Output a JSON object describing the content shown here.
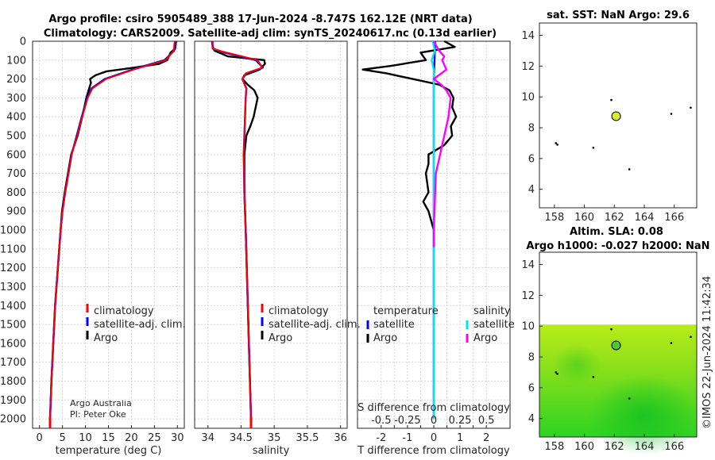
{
  "titles": {
    "line1": "Argo profile: csiro 5905489_388 17-Jun-2024 -8.747S 162.12E (NRT data)",
    "line2": "Climatology: CARS2009. Satellite-adj clim: synTS_20240617.nc (0.13d earlier)",
    "sst": "sat. SST: NaN Argo: 29.6",
    "sla": "Altim. SLA: 0.08",
    "h": "Argo h1000: -0.027 h2000: NaN"
  },
  "credit": {
    "org": "Argo Australia",
    "pi": "PI: Peter Oke"
  },
  "watermark": "©IMOS 22-Jun-2024 11:42:34",
  "colors": {
    "climatology": "#ff0000",
    "satellite": "#0000ff",
    "argo": "#000000",
    "sat_salinity": "#00e5ee",
    "argo_salinity": "#ff00ff"
  },
  "chart_data": [
    {
      "id": "temperature",
      "type": "line",
      "xlabel": "temperature (deg C)",
      "xlim": [
        -1.5,
        31.5
      ],
      "xticks": [
        0,
        5,
        10,
        15,
        20,
        25,
        30
      ],
      "ylim": [
        0,
        2050
      ],
      "yticks": [
        0,
        100,
        200,
        300,
        400,
        500,
        600,
        700,
        800,
        900,
        1000,
        1100,
        1200,
        1300,
        1400,
        1500,
        1600,
        1700,
        1800,
        1900,
        2000
      ],
      "legend": [
        "climatology",
        "satellite-adj. clim.",
        "Argo"
      ],
      "series": [
        {
          "name": "climatology",
          "depth": [
            0,
            50,
            100,
            150,
            200,
            250,
            300,
            400,
            500,
            600,
            700,
            800,
            900,
            1000,
            1200,
            1400,
            1600,
            1800,
            2000
          ],
          "value": [
            29.4,
            29.2,
            27.5,
            20.5,
            14.5,
            11.5,
            10.5,
            9.3,
            8.2,
            7.0,
            6.3,
            5.6,
            5.0,
            4.6,
            4.0,
            3.4,
            3.0,
            2.6,
            2.3
          ]
        },
        {
          "name": "satellite-adj. clim.",
          "depth": [
            0,
            50,
            100,
            150,
            200,
            250,
            300,
            400,
            500,
            600,
            700,
            800,
            900,
            1000,
            1200,
            1400,
            1600,
            1800,
            2000
          ],
          "value": [
            29.5,
            29.3,
            27.2,
            20.2,
            14.2,
            11.3,
            10.4,
            9.2,
            8.1,
            7.0,
            6.3,
            5.6,
            5.0,
            4.6,
            4.0,
            3.4,
            3.0,
            2.6,
            2.3
          ]
        },
        {
          "name": "Argo",
          "depth": [
            0,
            40,
            60,
            100,
            120,
            140,
            160,
            180,
            200,
            220,
            250,
            300,
            400,
            500,
            600,
            700,
            800,
            900,
            1000,
            1200,
            1400,
            1600,
            1800,
            2000
          ],
          "value": [
            29.7,
            29.5,
            28.5,
            27.8,
            26.0,
            20.5,
            14.5,
            12.2,
            11.0,
            11.2,
            10.8,
            10.2,
            9.3,
            8.3,
            6.9,
            6.2,
            5.5,
            4.9,
            4.6,
            4.0,
            3.4,
            3.0,
            2.6,
            2.3
          ]
        }
      ]
    },
    {
      "id": "salinity",
      "type": "line",
      "xlabel": "salinity",
      "xlim": [
        33.8,
        36.1
      ],
      "xticks": [
        34,
        34.5,
        35,
        35.5,
        36
      ],
      "xticklabels": [
        "34",
        "34.5",
        "35",
        "35.5",
        "36"
      ],
      "ylim": [
        0,
        2050
      ],
      "legend": [
        "climatology",
        "satellite-adj. clim.",
        "Argo"
      ],
      "series": [
        {
          "name": "climatology",
          "depth": [
            0,
            40,
            60,
            100,
            140,
            170,
            200,
            250,
            300,
            400,
            500,
            600,
            800,
            1000,
            1500,
            2000
          ],
          "value": [
            34.07,
            34.07,
            34.28,
            34.75,
            34.82,
            34.57,
            34.52,
            34.58,
            34.57,
            34.56,
            34.55,
            34.54,
            34.55,
            34.57,
            34.61,
            34.65
          ]
        },
        {
          "name": "satellite-adj. clim.",
          "depth": [
            0,
            40,
            60,
            100,
            140,
            170,
            200,
            250,
            300,
            400,
            500,
            600,
            800,
            1000,
            1500,
            2000
          ],
          "value": [
            34.06,
            34.08,
            34.25,
            34.72,
            34.83,
            34.58,
            34.52,
            34.58,
            34.57,
            34.56,
            34.55,
            34.54,
            34.55,
            34.57,
            34.61,
            34.65
          ]
        },
        {
          "name": "Argo",
          "depth": [
            0,
            30,
            50,
            80,
            100,
            120,
            150,
            180,
            200,
            230,
            260,
            300,
            350,
            400,
            450,
            500,
            600,
            800,
            1000,
            1500,
            2000
          ],
          "value": [
            34.07,
            34.07,
            34.1,
            34.3,
            34.85,
            34.86,
            34.78,
            34.55,
            34.52,
            34.6,
            34.7,
            34.75,
            34.72,
            34.69,
            34.64,
            34.58,
            34.55,
            34.55,
            34.57,
            34.61,
            34.65
          ]
        }
      ]
    },
    {
      "id": "difference",
      "type": "line",
      "xlabel": "T difference from climatology",
      "xlim": [
        -2.9,
        2.9
      ],
      "xticks": [
        -2,
        -1.5,
        -1,
        -0.5,
        0,
        0.5,
        1,
        1.5,
        2
      ],
      "xticklabels": [
        "-2",
        "",
        "-1",
        "",
        "0",
        "",
        "1",
        "",
        "2"
      ],
      "top_axis_label": "S difference from climatology",
      "top_ticks": [
        "-0.5",
        "-0.25",
        "0",
        "0.25",
        "0.5"
      ],
      "ylim": [
        0,
        2050
      ],
      "legend_groups": [
        {
          "header": "temperature",
          "items": [
            "satellite",
            "Argo"
          ]
        },
        {
          "header": "salinity",
          "items": [
            "satellite",
            "Argo"
          ]
        }
      ],
      "series": [
        {
          "name": "T satellite",
          "depth": [
            0,
            100,
            200,
            300,
            500,
            1000,
            2000
          ],
          "value": [
            0.05,
            0.03,
            0.0,
            0.0,
            0.0,
            0.0,
            0.0
          ]
        },
        {
          "name": "T Argo",
          "depth": [
            0,
            30,
            60,
            100,
            130,
            150,
            170,
            200,
            230,
            260,
            300,
            350,
            400,
            450,
            500,
            550,
            600,
            650,
            700,
            800,
            850,
            900,
            1000
          ],
          "value": [
            0.4,
            0.8,
            -0.5,
            -0.3,
            -1.6,
            -2.7,
            -1.8,
            -0.8,
            0.2,
            0.6,
            0.75,
            0.7,
            0.85,
            0.65,
            0.7,
            0.4,
            -0.2,
            -0.2,
            -0.3,
            -0.2,
            -0.4,
            -0.2,
            0.0
          ]
        },
        {
          "name": "S satellite",
          "depth": [
            0,
            50,
            100,
            150,
            200,
            300,
            500,
            1000,
            2000
          ],
          "value": [
            -0.01,
            0.01,
            -0.02,
            0.0,
            0.0,
            0.0,
            0.0,
            0.0,
            0.0
          ]
        },
        {
          "name": "S Argo",
          "depth": [
            0,
            50,
            80,
            100,
            150,
            200,
            230,
            260,
            300,
            400,
            500,
            700,
            1000,
            1090
          ],
          "value": [
            0.0,
            0.05,
            0.1,
            0.08,
            0.12,
            0.0,
            0.07,
            0.12,
            0.16,
            0.14,
            0.1,
            0.02,
            0.0,
            0.0
          ]
        }
      ]
    },
    {
      "id": "sst_map",
      "type": "scatter",
      "xlim": [
        157,
        167.5
      ],
      "ylim": [
        2.8,
        14.8
      ],
      "xticks": [
        158,
        160,
        162,
        164,
        166
      ],
      "yticks": [
        4,
        6,
        8,
        10,
        12,
        14
      ],
      "points": [
        {
          "x": 162.12,
          "y": 8.75
        }
      ]
    },
    {
      "id": "sla_map",
      "type": "heatmap",
      "xlim": [
        157,
        167.5
      ],
      "ylim": [
        2.8,
        14.8
      ],
      "xticks": [
        158,
        160,
        162,
        164,
        166
      ],
      "yticks": [
        4,
        6,
        8,
        10,
        12,
        14
      ],
      "field_extent": {
        "lat_max": 10.1
      },
      "points": [
        {
          "x": 162.12,
          "y": 8.75
        }
      ]
    }
  ]
}
